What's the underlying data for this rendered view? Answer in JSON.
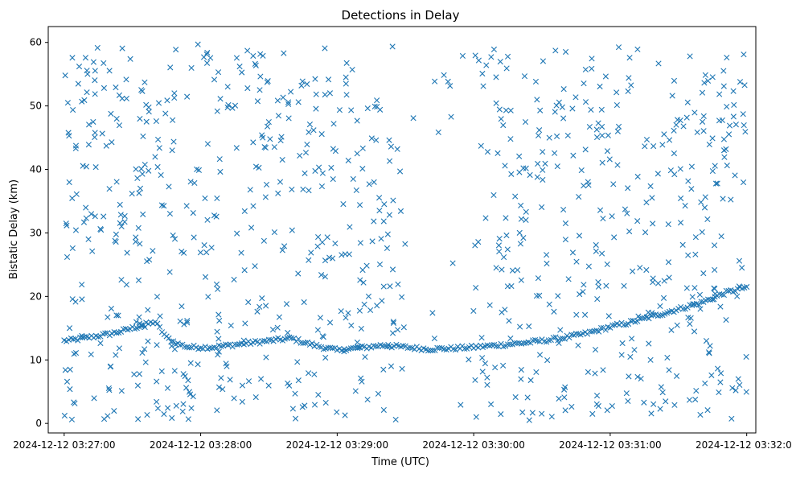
{
  "chart_data": {
    "type": "scatter",
    "title": "Detections in Delay",
    "xlabel": "Time (UTC)",
    "ylabel": "Bistatic Delay (km)",
    "x_ticks": [
      "2024-12-12 03:27:00",
      "2024-12-12 03:28:00",
      "2024-12-12 03:29:00",
      "2024-12-12 03:30:00",
      "2024-12-12 03:31:00",
      "2024-12-12 03:32:00"
    ],
    "y_ticks": [
      "0",
      "10",
      "20",
      "30",
      "40",
      "50",
      "60"
    ],
    "xlim": [
      "2024-12-12 03:26:53",
      "2024-12-12 03:32:04"
    ],
    "ylim": [
      -1.5,
      62.5
    ],
    "marker": "x",
    "color": "#1f77b4",
    "grid": false,
    "legend": "none",
    "series": [
      {
        "description_only": false,
        "track_points": [
          [
            "2024-12-12 03:27:00",
            13.0
          ],
          [
            "2024-12-12 03:27:05",
            13.2
          ],
          [
            "2024-12-12 03:27:10",
            13.5
          ],
          [
            "2024-12-12 03:27:15",
            13.8
          ],
          [
            "2024-12-12 03:27:20",
            14.1
          ],
          [
            "2024-12-12 03:27:25",
            14.5
          ],
          [
            "2024-12-12 03:27:30",
            15.0
          ],
          [
            "2024-12-12 03:27:35",
            15.5
          ],
          [
            "2024-12-12 03:27:40",
            16.0
          ],
          [
            "2024-12-12 03:27:45",
            13.5
          ],
          [
            "2024-12-12 03:27:50",
            12.5
          ],
          [
            "2024-12-12 03:27:55",
            12.0
          ],
          [
            "2024-12-12 03:28:00",
            12.0
          ],
          [
            "2024-12-12 03:28:05",
            12.0
          ],
          [
            "2024-12-12 03:28:10",
            12.2
          ],
          [
            "2024-12-12 03:28:15",
            12.4
          ],
          [
            "2024-12-12 03:28:20",
            12.6
          ],
          [
            "2024-12-12 03:28:25",
            12.8
          ],
          [
            "2024-12-12 03:28:30",
            13.0
          ],
          [
            "2024-12-12 03:28:35",
            13.2
          ],
          [
            "2024-12-12 03:28:40",
            13.4
          ],
          [
            "2024-12-12 03:28:45",
            12.8
          ],
          [
            "2024-12-12 03:28:50",
            12.3
          ],
          [
            "2024-12-12 03:28:55",
            11.9
          ],
          [
            "2024-12-12 03:29:00",
            11.5
          ],
          [
            "2024-12-12 03:29:20",
            12.3
          ],
          [
            "2024-12-12 03:29:30",
            12.0
          ],
          [
            "2024-12-12 03:29:40",
            11.7
          ],
          [
            "2024-12-12 03:29:50",
            11.8
          ],
          [
            "2024-12-12 03:30:00",
            12.0
          ],
          [
            "2024-12-12 03:30:10",
            12.3
          ],
          [
            "2024-12-12 03:30:20",
            12.6
          ],
          [
            "2024-12-12 03:30:30",
            13.0
          ],
          [
            "2024-12-12 03:30:40",
            13.5
          ],
          [
            "2024-12-12 03:30:50",
            14.2
          ],
          [
            "2024-12-12 03:31:00",
            15.2
          ],
          [
            "2024-12-12 03:31:10",
            16.0
          ],
          [
            "2024-12-12 03:31:20",
            17.0
          ],
          [
            "2024-12-12 03:31:30",
            18.0
          ],
          [
            "2024-12-12 03:31:40",
            19.0
          ],
          [
            "2024-12-12 03:31:50",
            20.5
          ],
          [
            "2024-12-12 03:32:00",
            21.5
          ]
        ],
        "noise": {
          "x_range": [
            "2024-12-12 03:27:00",
            "2024-12-12 03:32:00"
          ],
          "y_range": [
            0.5,
            60
          ],
          "approx_count": 900,
          "sparse_gap_range": [
            "2024-12-12 03:29:30",
            "2024-12-12 03:30:00"
          ]
        }
      }
    ]
  }
}
